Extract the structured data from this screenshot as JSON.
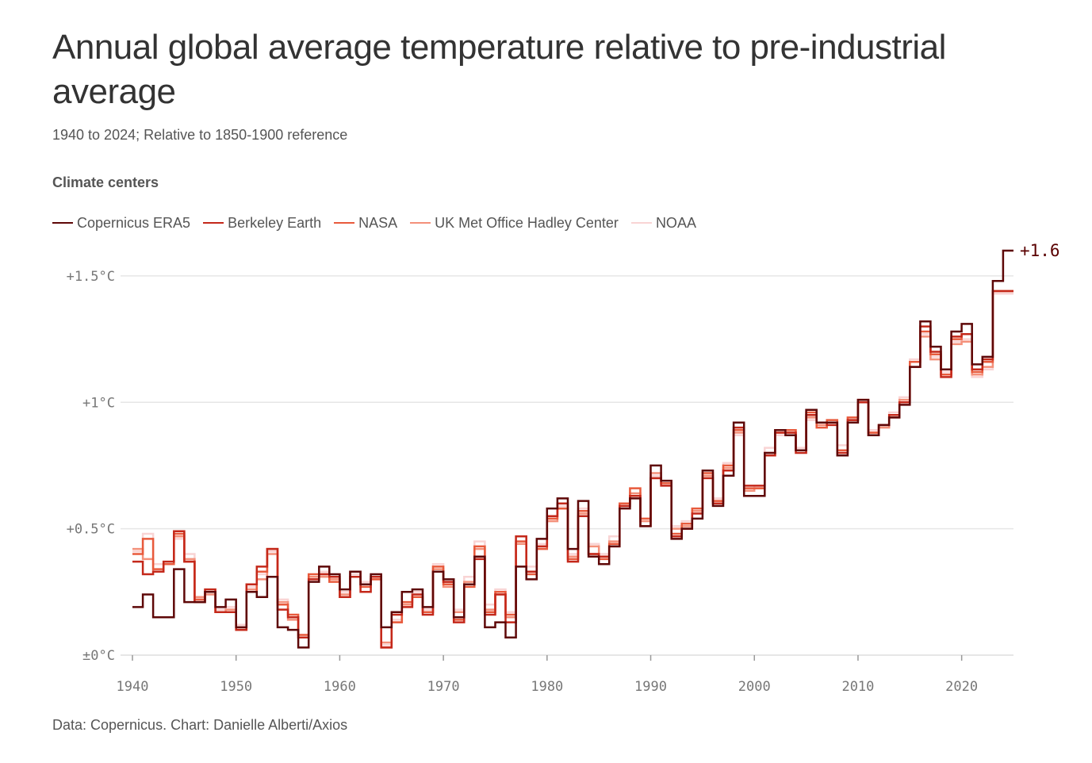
{
  "title": "Annual global average temperature relative to pre-industrial average",
  "subtitle": "1940 to 2024; Relative to 1850-1900 reference",
  "legend_title": "Climate centers",
  "source": "Data: Copernicus. Chart: Danielle Alberti/Axios",
  "chart_data": {
    "type": "line",
    "title": "Annual global average temperature relative to pre-industrial average",
    "subtitle": "1940 to 2024; Relative to 1850-1900 reference",
    "xlabel": "",
    "ylabel": "",
    "xlim": [
      1940,
      2025
    ],
    "ylim": [
      0,
      1.6
    ],
    "step": true,
    "grid": true,
    "legend_position": "top",
    "x_ticks": [
      1940,
      1950,
      1960,
      1970,
      1980,
      1990,
      2000,
      2010,
      2020
    ],
    "x_tick_labels": [
      "1940",
      "1950",
      "1960",
      "1970",
      "1980",
      "1990",
      "2000",
      "2010",
      "2020"
    ],
    "y_ticks": [
      0,
      0.5,
      1,
      1.5
    ],
    "y_tick_labels": [
      "±0°C",
      "+0.5°C",
      "+1°C",
      "+1.5°C"
    ],
    "end_label": "+1.6",
    "years": [
      1940,
      1941,
      1942,
      1943,
      1944,
      1945,
      1946,
      1947,
      1948,
      1949,
      1950,
      1951,
      1952,
      1953,
      1954,
      1955,
      1956,
      1957,
      1958,
      1959,
      1960,
      1961,
      1962,
      1963,
      1964,
      1965,
      1966,
      1967,
      1968,
      1969,
      1970,
      1971,
      1972,
      1973,
      1974,
      1975,
      1976,
      1977,
      1978,
      1979,
      1980,
      1981,
      1982,
      1983,
      1984,
      1985,
      1986,
      1987,
      1988,
      1989,
      1990,
      1991,
      1992,
      1993,
      1994,
      1995,
      1996,
      1997,
      1998,
      1999,
      2000,
      2001,
      2002,
      2003,
      2004,
      2005,
      2006,
      2007,
      2008,
      2009,
      2010,
      2011,
      2012,
      2013,
      2014,
      2015,
      2016,
      2017,
      2018,
      2019,
      2020,
      2021,
      2022,
      2023,
      2024
    ],
    "series": [
      {
        "name": "NOAA",
        "color": "#f9d4d4",
        "width": 2.5,
        "values": [
          0.41,
          0.48,
          0.36,
          0.37,
          0.46,
          0.4,
          0.22,
          0.25,
          0.18,
          0.19,
          0.12,
          0.27,
          0.32,
          0.41,
          0.22,
          0.15,
          0.08,
          0.3,
          0.33,
          0.3,
          0.25,
          0.32,
          0.29,
          0.31,
          0.04,
          0.14,
          0.21,
          0.25,
          0.18,
          0.36,
          0.29,
          0.18,
          0.31,
          0.45,
          0.2,
          0.26,
          0.17,
          0.45,
          0.35,
          0.44,
          0.54,
          0.59,
          0.4,
          0.58,
          0.44,
          0.4,
          0.47,
          0.58,
          0.64,
          0.54,
          0.71,
          0.69,
          0.51,
          0.53,
          0.57,
          0.7,
          0.62,
          0.76,
          0.87,
          0.66,
          0.67,
          0.82,
          0.87,
          0.87,
          0.82,
          0.93,
          0.92,
          0.92,
          0.83,
          0.94,
          1.01,
          0.89,
          0.91,
          0.96,
          1.02,
          1.17,
          1.27,
          1.18,
          1.12,
          1.24,
          1.25,
          1.1,
          1.13,
          1.43,
          1.43
        ]
      },
      {
        "name": "UK Met Office Hadley Center",
        "color": "#f4907a",
        "width": 2.5,
        "values": [
          0.42,
          0.38,
          0.33,
          0.36,
          0.47,
          0.38,
          0.23,
          0.24,
          0.17,
          0.18,
          0.11,
          0.26,
          0.3,
          0.4,
          0.21,
          0.14,
          0.07,
          0.31,
          0.31,
          0.3,
          0.24,
          0.31,
          0.28,
          0.3,
          0.05,
          0.13,
          0.2,
          0.23,
          0.17,
          0.34,
          0.27,
          0.17,
          0.29,
          0.42,
          0.18,
          0.24,
          0.15,
          0.44,
          0.33,
          0.43,
          0.53,
          0.58,
          0.39,
          0.56,
          0.43,
          0.39,
          0.45,
          0.59,
          0.64,
          0.53,
          0.72,
          0.68,
          0.5,
          0.51,
          0.57,
          0.71,
          0.61,
          0.74,
          0.88,
          0.65,
          0.66,
          0.8,
          0.88,
          0.88,
          0.81,
          0.94,
          0.91,
          0.92,
          0.81,
          0.93,
          1.0,
          0.88,
          0.9,
          0.95,
          1.01,
          1.16,
          1.26,
          1.17,
          1.11,
          1.23,
          1.24,
          1.11,
          1.14,
          1.44,
          1.44
        ]
      },
      {
        "name": "NASA",
        "color": "#e85a3c",
        "width": 2.5,
        "values": [
          0.4,
          0.46,
          0.34,
          0.36,
          0.48,
          0.37,
          0.22,
          0.25,
          0.17,
          0.17,
          0.1,
          0.25,
          0.33,
          0.42,
          0.2,
          0.16,
          0.08,
          0.32,
          0.32,
          0.29,
          0.23,
          0.33,
          0.27,
          0.3,
          0.03,
          0.13,
          0.21,
          0.23,
          0.17,
          0.35,
          0.28,
          0.14,
          0.27,
          0.43,
          0.17,
          0.25,
          0.16,
          0.45,
          0.32,
          0.42,
          0.54,
          0.58,
          0.38,
          0.57,
          0.4,
          0.38,
          0.44,
          0.6,
          0.66,
          0.54,
          0.7,
          0.68,
          0.48,
          0.52,
          0.58,
          0.72,
          0.61,
          0.75,
          0.89,
          0.66,
          0.66,
          0.79,
          0.89,
          0.89,
          0.81,
          0.96,
          0.9,
          0.93,
          0.81,
          0.94,
          1.01,
          0.88,
          0.91,
          0.94,
          1.0,
          1.16,
          1.28,
          1.19,
          1.11,
          1.25,
          1.27,
          1.12,
          1.16,
          1.44,
          1.44
        ]
      },
      {
        "name": "Berkeley Earth",
        "color": "#c4281a",
        "width": 2.5,
        "values": [
          0.37,
          0.32,
          0.33,
          0.37,
          0.49,
          0.37,
          0.21,
          0.26,
          0.17,
          0.17,
          0.1,
          0.28,
          0.35,
          0.42,
          0.18,
          0.15,
          0.07,
          0.3,
          0.32,
          0.31,
          0.23,
          0.31,
          0.25,
          0.31,
          0.03,
          0.16,
          0.19,
          0.24,
          0.16,
          0.33,
          0.29,
          0.13,
          0.28,
          0.38,
          0.16,
          0.24,
          0.13,
          0.47,
          0.33,
          0.43,
          0.55,
          0.6,
          0.37,
          0.55,
          0.4,
          0.39,
          0.43,
          0.59,
          0.63,
          0.51,
          0.7,
          0.67,
          0.47,
          0.5,
          0.56,
          0.7,
          0.6,
          0.73,
          0.9,
          0.67,
          0.67,
          0.79,
          0.88,
          0.88,
          0.8,
          0.95,
          0.92,
          0.91,
          0.8,
          0.93,
          1.0,
          0.87,
          0.91,
          0.95,
          1.0,
          1.14,
          1.3,
          1.2,
          1.1,
          1.26,
          1.27,
          1.13,
          1.17,
          1.44,
          1.44
        ]
      },
      {
        "name": "Copernicus ERA5",
        "color": "#5e0707",
        "width": 2.5,
        "values": [
          0.19,
          0.24,
          0.15,
          0.15,
          0.34,
          0.21,
          0.21,
          0.25,
          0.19,
          0.22,
          0.11,
          0.25,
          0.23,
          0.31,
          0.11,
          0.1,
          0.03,
          0.29,
          0.35,
          0.32,
          0.26,
          0.33,
          0.28,
          0.32,
          0.11,
          0.17,
          0.25,
          0.26,
          0.19,
          0.33,
          0.3,
          0.15,
          0.28,
          0.39,
          0.11,
          0.13,
          0.07,
          0.35,
          0.3,
          0.46,
          0.58,
          0.62,
          0.42,
          0.61,
          0.39,
          0.36,
          0.43,
          0.58,
          0.62,
          0.51,
          0.75,
          0.69,
          0.46,
          0.5,
          0.54,
          0.73,
          0.59,
          0.71,
          0.92,
          0.63,
          0.63,
          0.8,
          0.89,
          0.87,
          0.81,
          0.97,
          0.92,
          0.92,
          0.79,
          0.92,
          1.01,
          0.87,
          0.91,
          0.94,
          0.99,
          1.14,
          1.32,
          1.22,
          1.13,
          1.28,
          1.31,
          1.15,
          1.18,
          1.48,
          1.6
        ]
      }
    ],
    "legend_order": [
      "Copernicus ERA5",
      "Berkeley Earth",
      "NASA",
      "UK Met Office Hadley Center",
      "NOAA"
    ]
  }
}
